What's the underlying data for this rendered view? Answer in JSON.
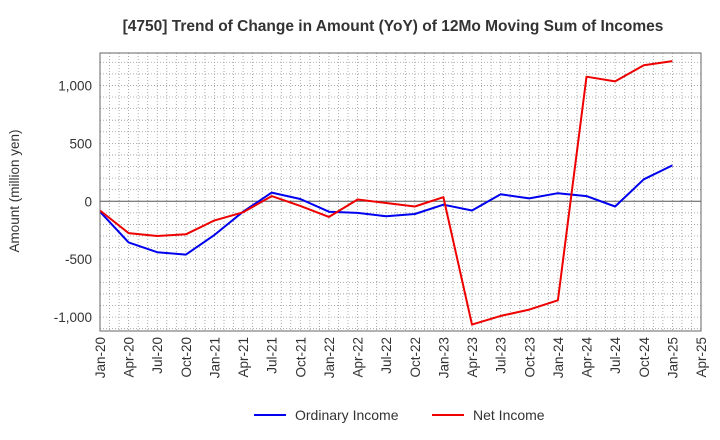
{
  "chart_data": {
    "type": "line",
    "title": "[4750]  Trend of Change in Amount (YoY) of 12Mo Moving Sum of Incomes",
    "xlabel": "",
    "ylabel": "Amount (million yen)",
    "ylim": [
      -1120,
      1280
    ],
    "yticks": [
      -1000,
      -500,
      0,
      500,
      1000
    ],
    "ytick_labels": [
      "-1,000",
      "-500",
      "0",
      "500",
      "1,000"
    ],
    "x_tick_labels": [
      "Jan-20",
      "Apr-20",
      "Jul-20",
      "Oct-20",
      "Jan-21",
      "Apr-21",
      "Jul-21",
      "Oct-21",
      "Jan-22",
      "Apr-22",
      "Jul-22",
      "Oct-22",
      "Jan-23",
      "Apr-23",
      "Jul-23",
      "Oct-23",
      "Jan-24",
      "Apr-24",
      "Jul-24",
      "Oct-24",
      "Jan-25",
      "Apr-25"
    ],
    "x": [
      "Jan-20",
      "Apr-20",
      "Jul-20",
      "Oct-20",
      "Jan-21",
      "Apr-21",
      "Jul-21",
      "Oct-21",
      "Jan-22",
      "Apr-22",
      "Jul-22",
      "Oct-22",
      "Jan-23",
      "Apr-23",
      "Jul-23",
      "Oct-23",
      "Jan-24",
      "Apr-24",
      "Jul-24",
      "Oct-24",
      "Jan-25"
    ],
    "grid": true,
    "legend_position": "bottom-center",
    "series": [
      {
        "name": "Ordinary Income",
        "color": "#0000ee",
        "values": [
          -90,
          -355,
          -440,
          -460,
          -290,
          -90,
          75,
          20,
          -90,
          -100,
          -130,
          -110,
          -30,
          -80,
          60,
          25,
          70,
          45,
          -45,
          190,
          310
        ]
      },
      {
        "name": "Net Income",
        "color": "#ee0000",
        "values": [
          -80,
          -275,
          -300,
          -285,
          -165,
          -95,
          45,
          -40,
          -135,
          15,
          -15,
          -45,
          35,
          -1065,
          -990,
          -935,
          -855,
          1075,
          1035,
          1175,
          1210
        ]
      }
    ]
  }
}
